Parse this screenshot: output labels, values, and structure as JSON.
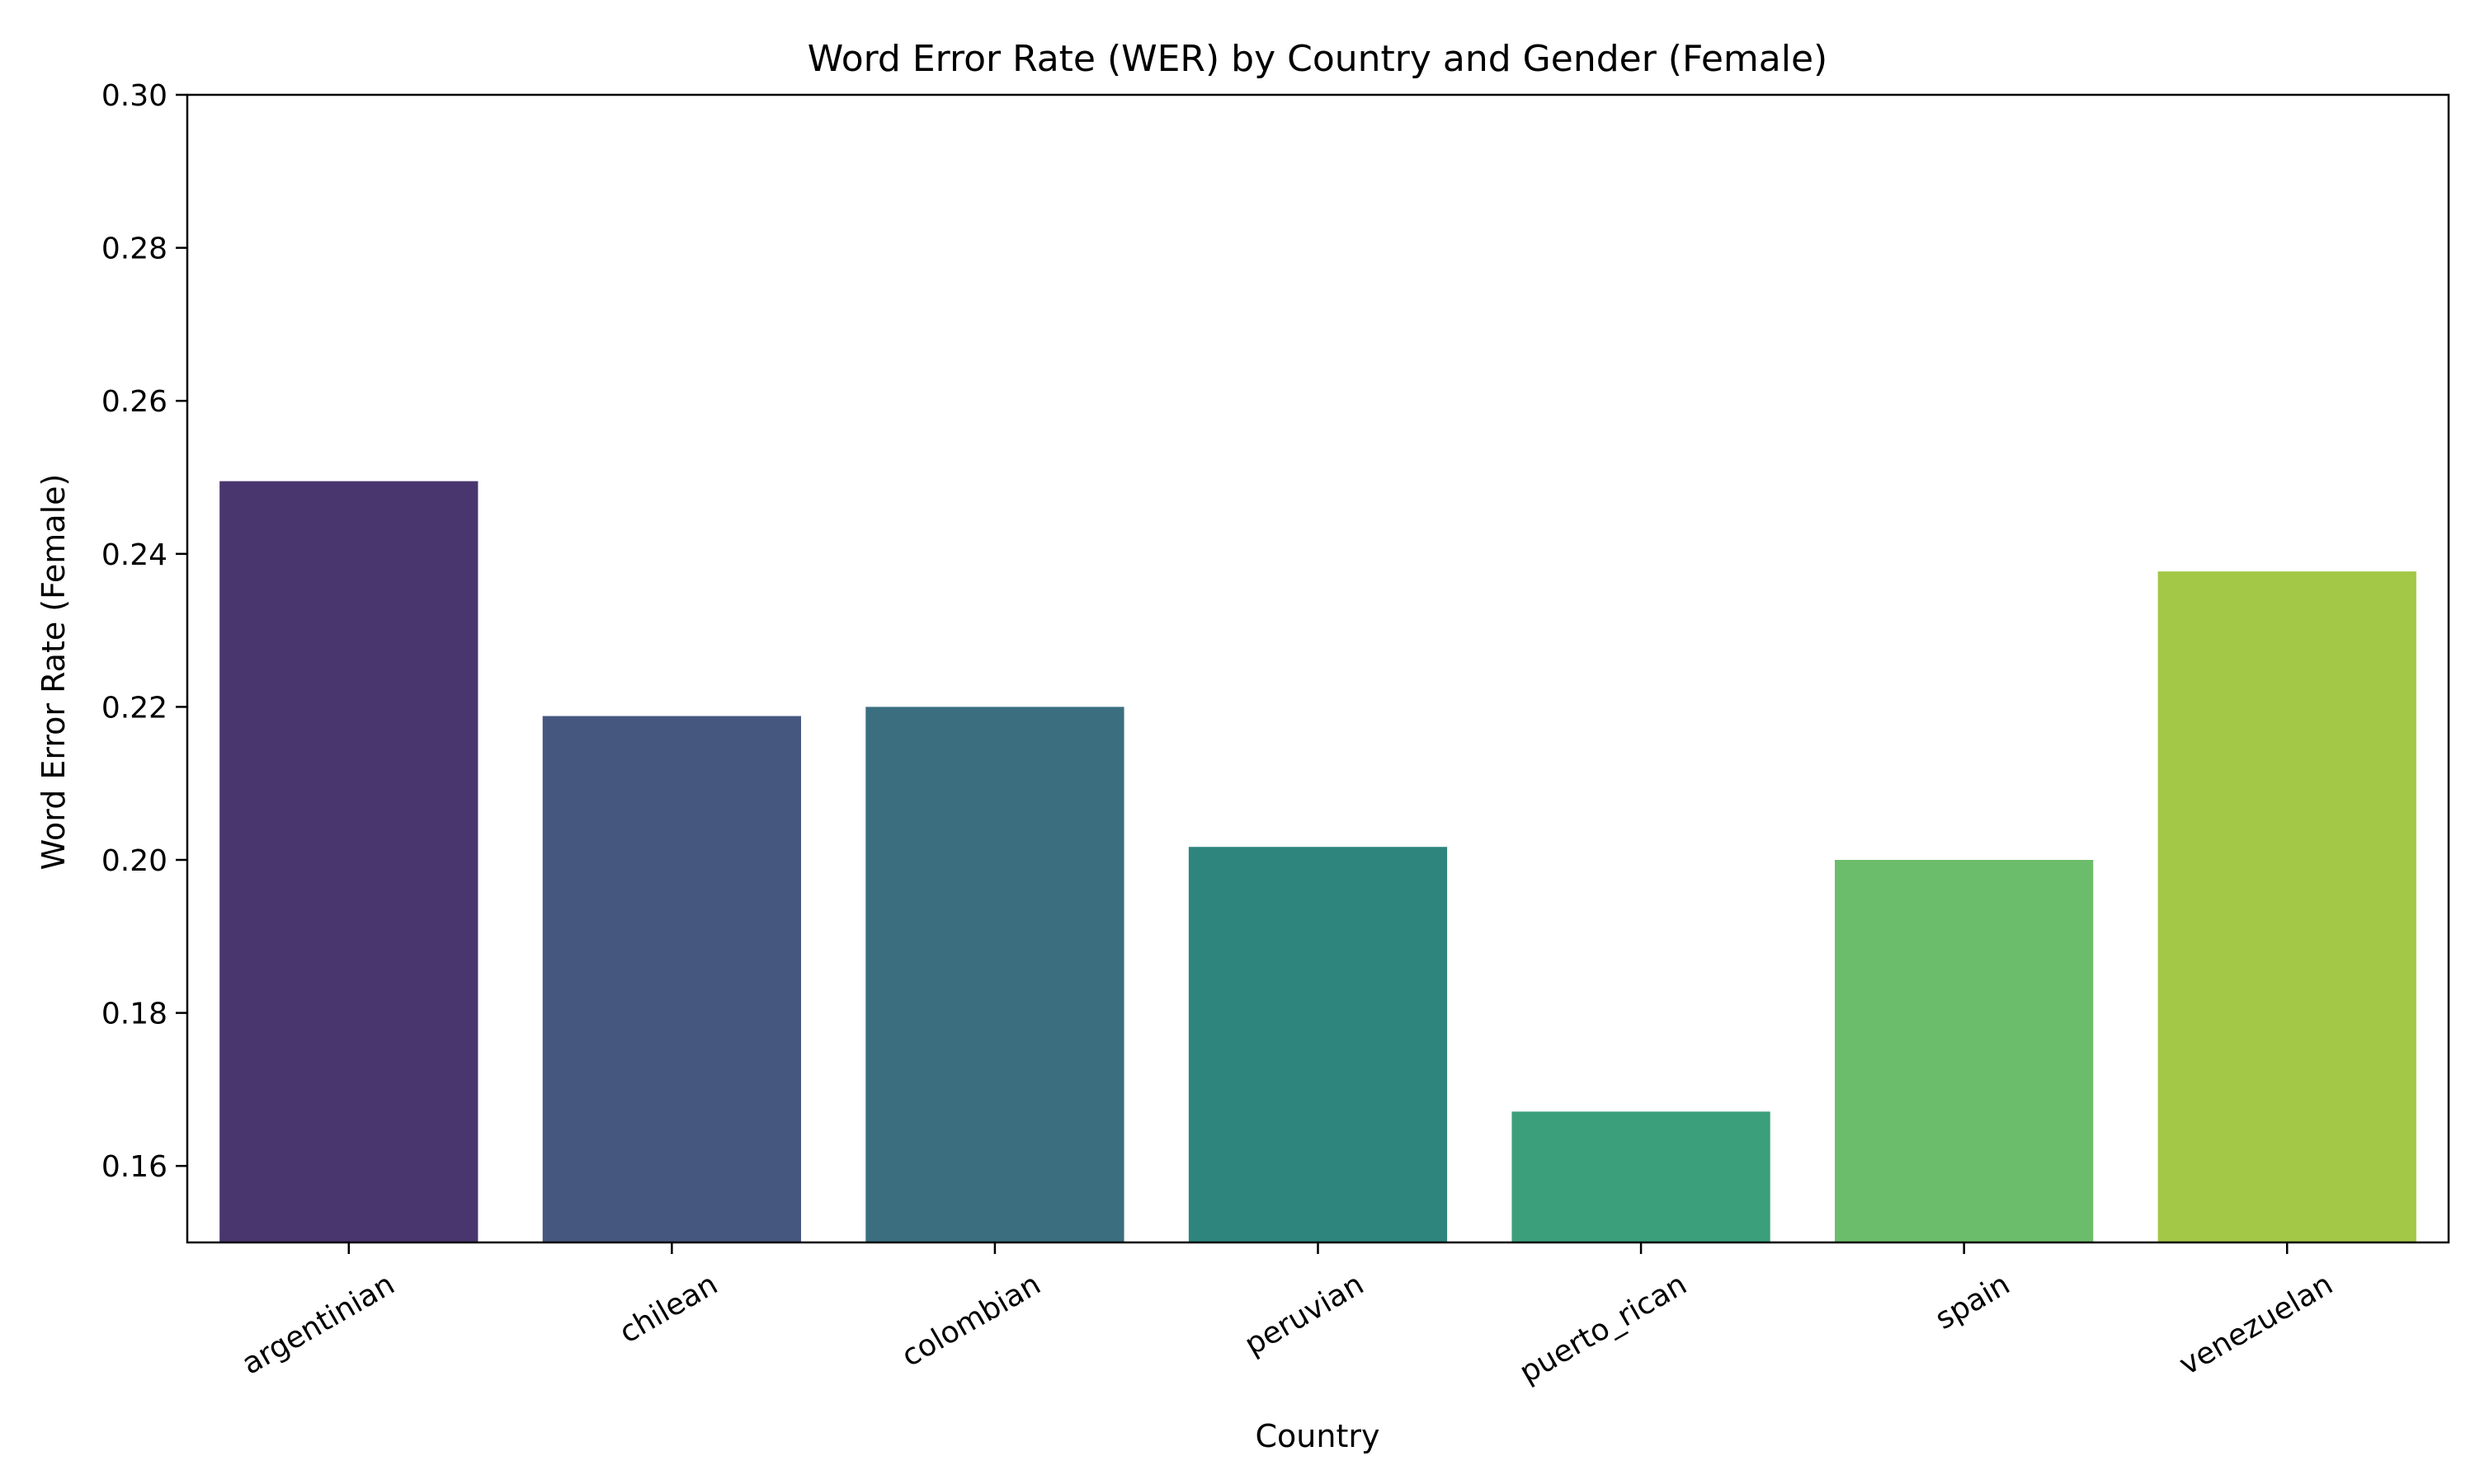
{
  "chart_data": {
    "type": "bar",
    "title": "Word Error Rate (WER) by Country and Gender (Female)",
    "xlabel": "Country",
    "ylabel": "Word Error Rate (Female)",
    "ylim": [
      0.15,
      0.3
    ],
    "yticks": [
      "0.16",
      "0.18",
      "0.20",
      "0.22",
      "0.24",
      "0.26",
      "0.28",
      "0.30"
    ],
    "yticks_values": [
      0.16,
      0.18,
      0.2,
      0.22,
      0.24,
      0.26,
      0.28,
      0.3
    ],
    "categories": [
      "argentinian",
      "chilean",
      "colombian",
      "peruvian",
      "puerto_rican",
      "spain",
      "venezuelan"
    ],
    "values": [
      0.2495,
      0.2188,
      0.22,
      0.2017,
      0.1671,
      0.2,
      0.2377
    ],
    "colors": [
      "#4a366f",
      "#46577f",
      "#3b6f80",
      "#2e857d",
      "#3b9f7b",
      "#6cbd6b",
      "#a3c747"
    ],
    "grid": false,
    "legend": "none"
  }
}
